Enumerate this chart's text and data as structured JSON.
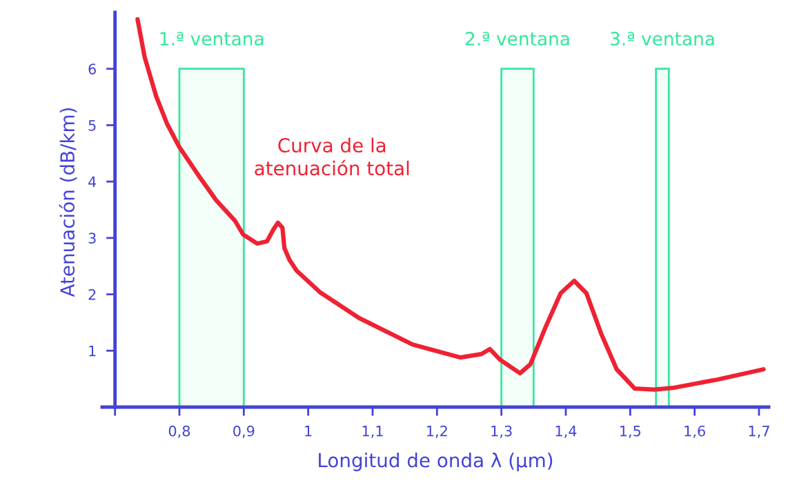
{
  "chart_data": {
    "type": "line",
    "xlabel": "Longitud de onda λ (µm)",
    "ylabel": "Atenuación (dB/km)",
    "series": [
      {
        "name": "Curva de la\natenuación total",
        "color": "#ee2233",
        "x": [
          0.735,
          0.746,
          0.764,
          0.781,
          0.8,
          0.829,
          0.857,
          0.886,
          0.899,
          0.921,
          0.936,
          0.946,
          0.953,
          0.96,
          0.963,
          0.971,
          0.982,
          1.018,
          1.079,
          1.162,
          1.236,
          1.269,
          1.282,
          1.298,
          1.329,
          1.345,
          1.369,
          1.392,
          1.413,
          1.432,
          1.455,
          1.479,
          1.507,
          1.538,
          1.566,
          1.636,
          1.707
        ],
        "values": [
          6.88,
          6.21,
          5.51,
          5.02,
          4.61,
          4.12,
          3.67,
          3.31,
          3.06,
          2.9,
          2.94,
          3.15,
          3.27,
          3.18,
          2.82,
          2.61,
          2.42,
          2.04,
          1.58,
          1.11,
          0.88,
          0.94,
          1.03,
          0.84,
          0.6,
          0.76,
          1.43,
          2.02,
          2.24,
          2.02,
          1.3,
          0.67,
          0.33,
          0.31,
          0.34,
          0.49,
          0.67
        ]
      }
    ],
    "bands": [
      {
        "axis": "x",
        "from": 0.8,
        "to": 0.9,
        "label": "1.ª ventana",
        "color": "#33e89a"
      },
      {
        "axis": "x",
        "from": 1.3,
        "to": 1.35,
        "label": "2.ª ventana",
        "color": "#33e89a"
      },
      {
        "axis": "x",
        "from": 1.54,
        "to": 1.56,
        "label": "3.ª ventana",
        "color": "#33e89a"
      }
    ],
    "xlim": [
      0.68,
      1.715
    ],
    "ylim": [
      0,
      7
    ],
    "xticks": [
      {
        "value": 0.7,
        "label": null
      },
      {
        "value": 0.8,
        "label": "0,8"
      },
      {
        "value": 0.9,
        "label": "0,9"
      },
      1,
      {
        "value": 1.1,
        "label": "1,1"
      },
      {
        "value": 1.2,
        "label": "1,2"
      },
      {
        "value": 1.3,
        "label": "1,3"
      },
      {
        "value": 1.4,
        "label": "1,4"
      },
      {
        "value": 1.5,
        "label": "1,5"
      },
      {
        "value": 1.6,
        "label": "1,6"
      },
      {
        "value": 1.7,
        "label": "1,7"
      }
    ],
    "yticks": [
      1,
      2,
      3,
      4,
      5,
      6
    ],
    "grid": false,
    "legend": false,
    "marker": "none",
    "line_style": "solid"
  }
}
